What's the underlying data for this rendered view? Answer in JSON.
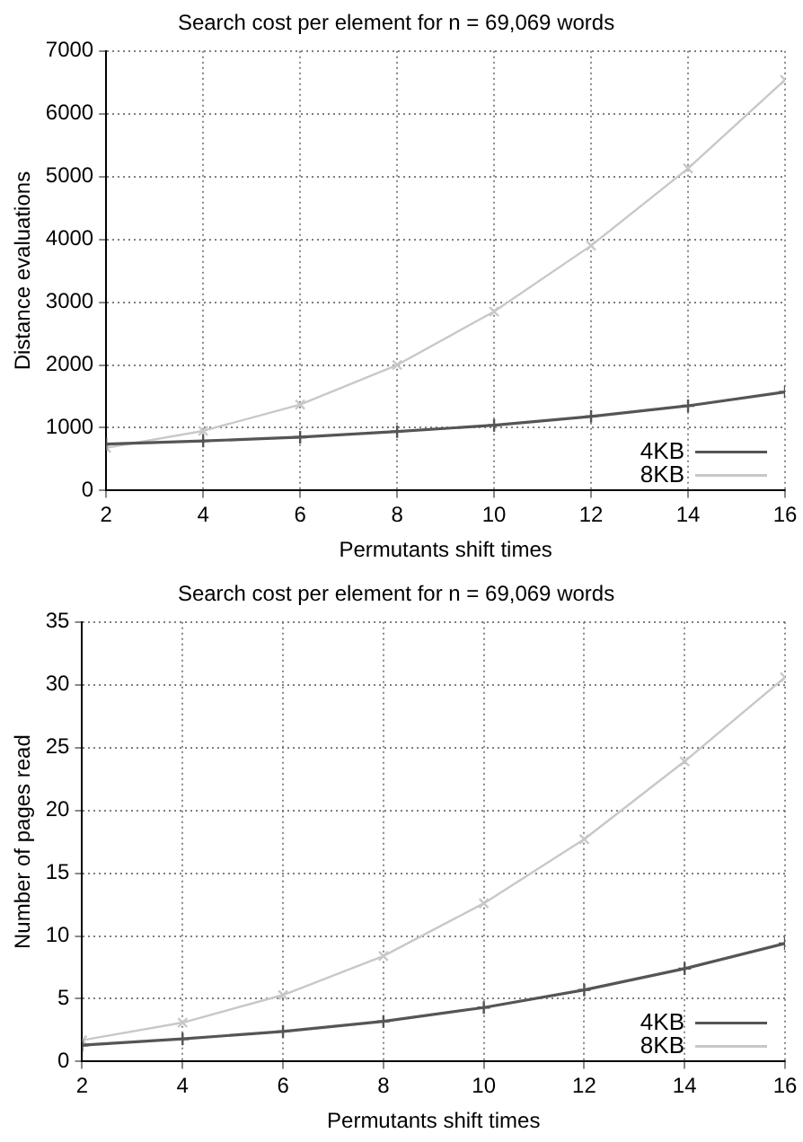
{
  "chart_data": [
    {
      "type": "line",
      "title": "Search cost per element for n = 69,069 words",
      "xlabel": "Permutants shift times",
      "ylabel": "Distance evaluations",
      "x": [
        2,
        4,
        6,
        8,
        10,
        12,
        14,
        16
      ],
      "series": [
        {
          "name": "4KB",
          "color": "#555555",
          "values": [
            740,
            790,
            850,
            940,
            1040,
            1180,
            1350,
            1570
          ]
        },
        {
          "name": "8KB",
          "color": "#c8c8c8",
          "values": [
            680,
            950,
            1370,
            2000,
            2850,
            3900,
            5130,
            6540
          ]
        }
      ],
      "xlim": [
        2,
        16
      ],
      "xticks": [
        2,
        4,
        6,
        8,
        10,
        12,
        14,
        16
      ],
      "ylim": [
        0,
        7000
      ],
      "yticks": [
        0,
        1000,
        2000,
        3000,
        4000,
        5000,
        6000,
        7000
      ],
      "grid": true,
      "legend": "bottom right",
      "marker": "cross",
      "line_style": "solid"
    },
    {
      "type": "line",
      "title": "Search cost per element for n = 69,069 words",
      "xlabel": "Permutants shift times",
      "ylabel": "Number of pages read",
      "x": [
        2,
        4,
        6,
        8,
        10,
        12,
        14,
        16
      ],
      "series": [
        {
          "name": "4KB",
          "color": "#555555",
          "values": [
            1.3,
            1.8,
            2.4,
            3.2,
            4.3,
            5.7,
            7.4,
            9.4
          ]
        },
        {
          "name": "8KB",
          "color": "#c8c8c8",
          "values": [
            1.7,
            3.1,
            5.3,
            8.4,
            12.6,
            17.7,
            23.9,
            30.6
          ]
        }
      ],
      "xlim": [
        2,
        16
      ],
      "xticks": [
        2,
        4,
        6,
        8,
        10,
        12,
        14,
        16
      ],
      "ylim": [
        0,
        35
      ],
      "yticks": [
        0,
        5,
        10,
        15,
        20,
        25,
        30,
        35
      ],
      "grid": true,
      "legend": "bottom right",
      "marker": "cross",
      "line_style": "solid"
    }
  ]
}
